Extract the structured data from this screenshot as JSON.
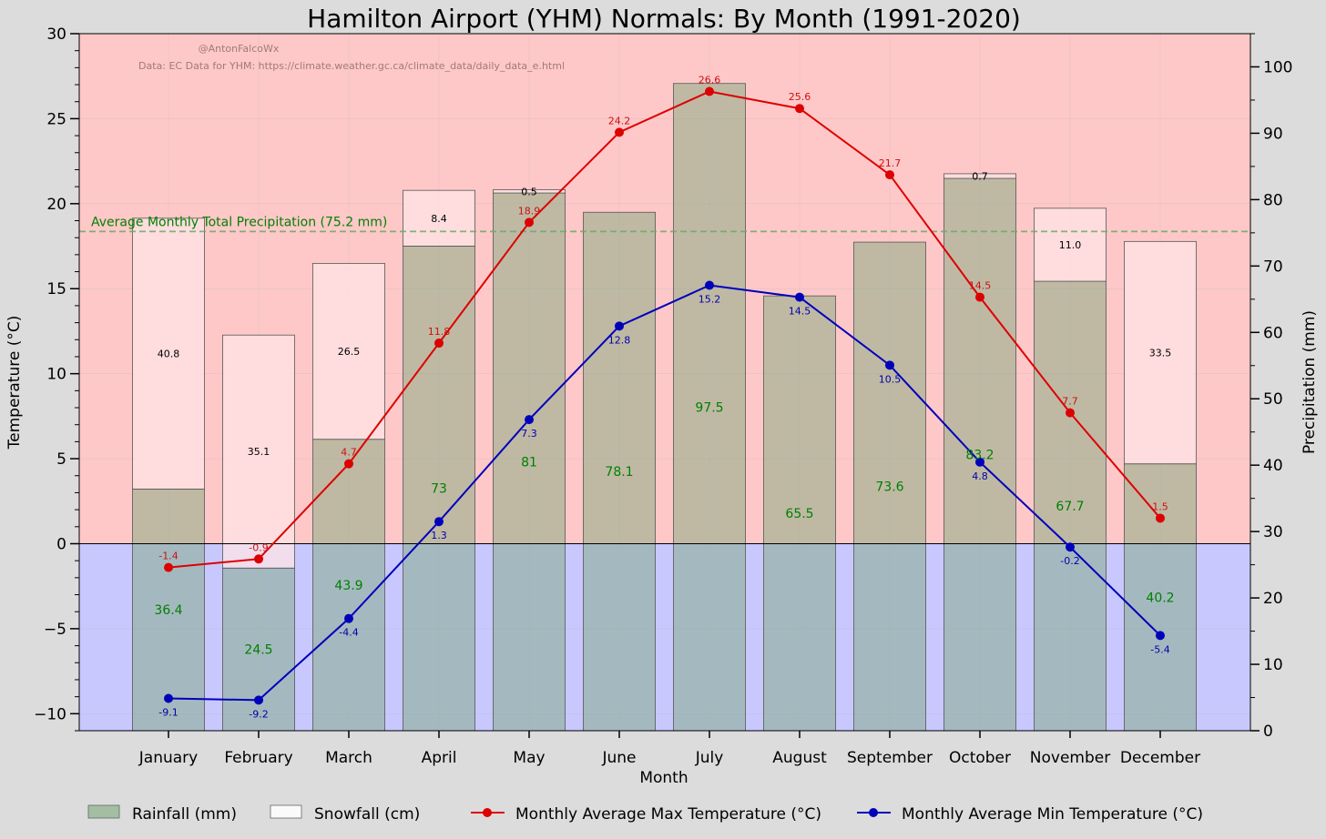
{
  "chart_data": {
    "type": "bar",
    "title": "Hamilton Airport (YHM) Normals: By Month (1991-2020)",
    "credit": "@AntonFalcoWx",
    "source": "Data: EC Data for YHM: https://climate.weather.gc.ca/climate_data/daily_data_e.html",
    "xlabel": "Month",
    "ylabel_left": "Temperature (°C)",
    "ylabel_right": "Precipitation (mm)",
    "ylim_left": [
      -11,
      30
    ],
    "ylim_right": [
      0,
      105
    ],
    "yticks_left": [
      "30",
      "25",
      "20",
      "15",
      "10",
      "5",
      "0",
      "−5",
      "−10"
    ],
    "yticks_left_values": [
      30,
      25,
      20,
      15,
      10,
      5,
      0,
      -5,
      -10
    ],
    "yticks_right": [
      "100",
      "90",
      "80",
      "70",
      "60",
      "50",
      "40",
      "30",
      "20",
      "10",
      "0"
    ],
    "yticks_right_values": [
      100,
      90,
      80,
      70,
      60,
      50,
      40,
      30,
      20,
      10,
      0
    ],
    "categories": [
      "January",
      "February",
      "March",
      "April",
      "May",
      "June",
      "July",
      "August",
      "September",
      "October",
      "November",
      "December"
    ],
    "rain_display": [
      "36.4",
      "24.5",
      "43.9",
      "73",
      "81",
      "78.1",
      "97.5",
      "65.5",
      "73.6",
      "83.2",
      "67.7",
      "40.2"
    ],
    "snow_display": [
      "40.8",
      "35.1",
      "26.5",
      "8.4",
      "0.5",
      "",
      "",
      "",
      "",
      "0.7",
      "11.0",
      "33.5"
    ],
    "tmax_display": [
      "-1.4",
      "-0.9",
      "4.7",
      "11.8",
      "18.9",
      "24.2",
      "26.6",
      "25.6",
      "21.7",
      "14.5",
      "7.7",
      "1.5"
    ],
    "tmin_display": [
      "-9.1",
      "-9.2",
      "-4.4",
      "1.3",
      "7.3",
      "12.8",
      "15.2",
      "14.5",
      "10.5",
      "4.8",
      "-0.2",
      "-5.4"
    ],
    "series": [
      {
        "name": "Rainfall (mm)",
        "axis": "right",
        "kind": "bar",
        "values": [
          36.4,
          24.5,
          43.9,
          73,
          81,
          78.1,
          97.5,
          65.5,
          73.6,
          83.2,
          67.7,
          40.2
        ]
      },
      {
        "name": "Snowfall (cm)",
        "axis": "right",
        "kind": "stacked-bar",
        "values": [
          40.8,
          35.1,
          26.5,
          8.4,
          0.5,
          0,
          0,
          0,
          0,
          0.7,
          11.0,
          33.5
        ]
      },
      {
        "name": "Monthly Average Max Temperature (°C)",
        "axis": "left",
        "kind": "line",
        "values": [
          -1.4,
          -0.9,
          4.7,
          11.8,
          18.9,
          24.2,
          26.6,
          25.6,
          21.7,
          14.5,
          7.7,
          1.5
        ]
      },
      {
        "name": "Monthly Average Min Temperature (°C)",
        "axis": "left",
        "kind": "line",
        "values": [
          -9.1,
          -9.2,
          -4.4,
          1.3,
          7.3,
          12.8,
          15.2,
          14.5,
          10.5,
          4.8,
          -0.2,
          -5.4
        ]
      }
    ],
    "avg_precip": {
      "label": "Average Monthly Total Precipitation (75.2 mm)",
      "value": 75.2
    },
    "legend": {
      "placement": "bottom",
      "items": [
        "Rainfall (mm)",
        "Snowfall (cm)",
        "Monthly Average Max Temperature (°C)",
        "Monthly Average Min Temperature (°C)"
      ]
    },
    "colors": {
      "background": "#dcdcdc",
      "warm_band": "#ffc8c8",
      "cold_band": "#c8c8ff",
      "rain_bar": "#7faa7f",
      "rain_label": "#008000",
      "snow_bar": "#ffe4e6",
      "tmax": "#dd0000",
      "tmin": "#0000bb",
      "tmax_label": "#cc1111",
      "tmin_label": "#0000aa",
      "avg_line": "#6aa86a",
      "avg_label": "#008000"
    }
  }
}
